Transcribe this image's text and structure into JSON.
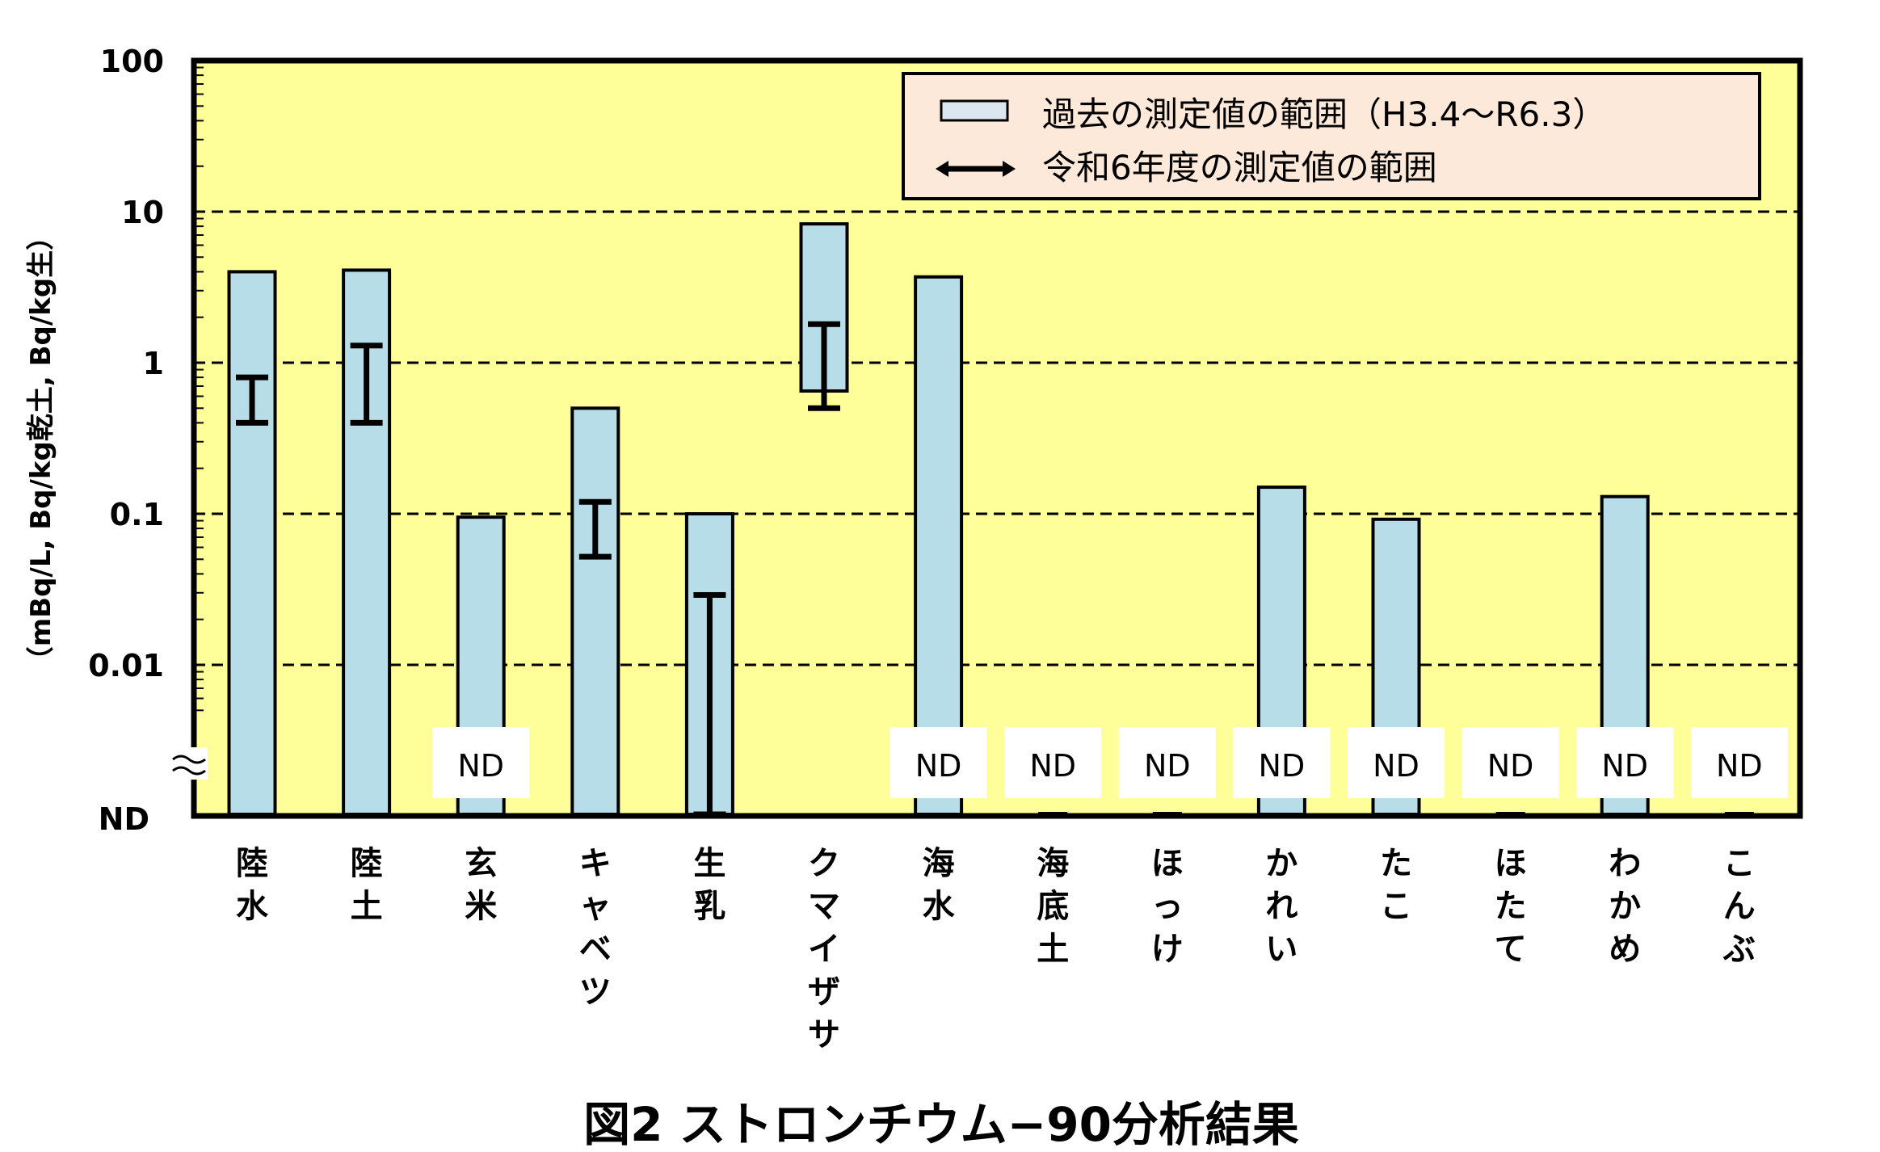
{
  "chart_data": {
    "type": "bar",
    "title": "図2 ストロンチウム−90分析結果",
    "ylabel": "（mBq/L, Bq/kg乾土, Bq/kg生）",
    "yscale": "log",
    "ylim": [
      0.001,
      100
    ],
    "yticks": [
      "100",
      "10",
      "1",
      "0.1",
      "0.01",
      "ND"
    ],
    "grid": true,
    "legend_position": "top-right",
    "legend": [
      {
        "name": "過去の測定値の範囲（H3.4〜R6.3）",
        "marker": "bar"
      },
      {
        "name": "令和6年度の測定値の範囲",
        "marker": "range-line"
      }
    ],
    "nd_label": "ND",
    "categories": [
      "陸水",
      "陸土",
      "玄米",
      "キャベツ",
      "生乳",
      "クマイザサ",
      "海水",
      "海底土",
      "ほっけ",
      "かれい",
      "たこ",
      "ほたて",
      "わかめ",
      "こんぶ"
    ],
    "past_range": [
      {
        "min": "ND",
        "max": 4.0
      },
      {
        "min": "ND",
        "max": 4.1
      },
      {
        "min": "ND",
        "max": 0.095
      },
      {
        "min": "ND",
        "max": 0.5
      },
      {
        "min": "ND",
        "max": 0.1
      },
      {
        "min": 0.65,
        "max": 8.3
      },
      {
        "min": "ND",
        "max": 3.7
      },
      {
        "min": "ND",
        "max": "ND"
      },
      {
        "min": "ND",
        "max": "ND"
      },
      {
        "min": "ND",
        "max": 0.15
      },
      {
        "min": "ND",
        "max": 0.092
      },
      {
        "min": "ND",
        "max": "ND"
      },
      {
        "min": "ND",
        "max": 0.13
      },
      {
        "min": "ND",
        "max": "ND"
      }
    ],
    "fy6_range": [
      {
        "min": 0.4,
        "max": 0.8
      },
      {
        "min": 0.4,
        "max": 1.3
      },
      "ND",
      {
        "min": 0.052,
        "max": 0.12
      },
      {
        "min": "ND",
        "max": 0.029
      },
      {
        "min": 0.5,
        "max": 1.8
      },
      "ND",
      "ND",
      "ND",
      "ND",
      "ND",
      "ND",
      "ND",
      "ND"
    ],
    "colors": {
      "plot_background": "#ffff99",
      "bar": "#b7dde8",
      "legend_background": "#fde9d9",
      "legend_bar": "#dce6f1"
    }
  }
}
